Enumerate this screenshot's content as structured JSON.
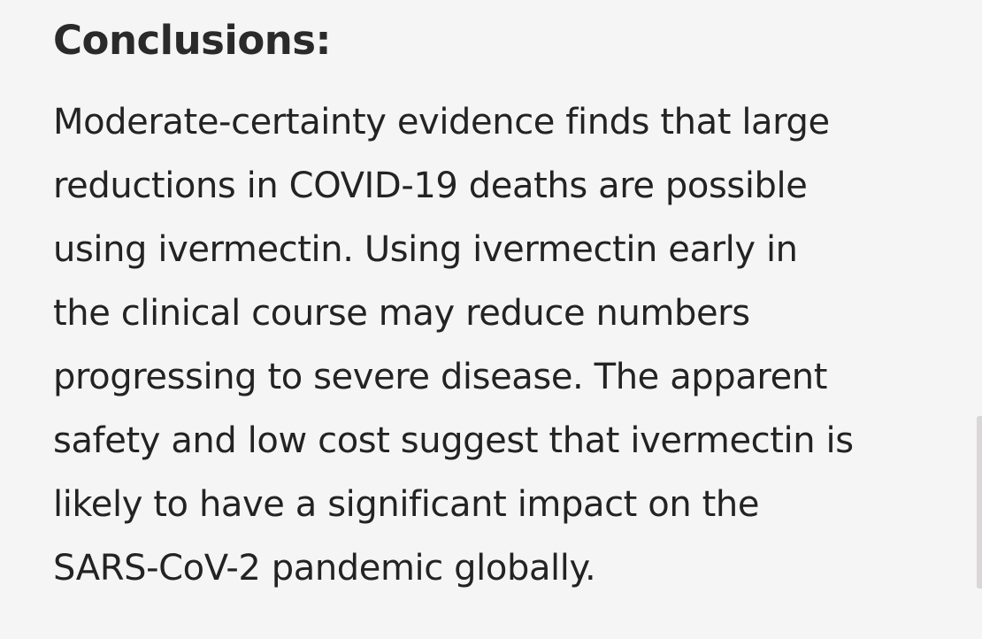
{
  "section": {
    "heading": "Conclusions:",
    "lines": [
      "Moderate-certainty evidence finds that large",
      "reductions in COVID-19 deaths are possible",
      "using ivermectin. Using ivermectin early in",
      "the clinical course may reduce numbers",
      "progressing to severe disease. The apparent",
      "safety and low cost suggest that ivermectin is",
      "likely to have a significant impact on the",
      "SARS-CoV-2 pandemic globally."
    ]
  }
}
